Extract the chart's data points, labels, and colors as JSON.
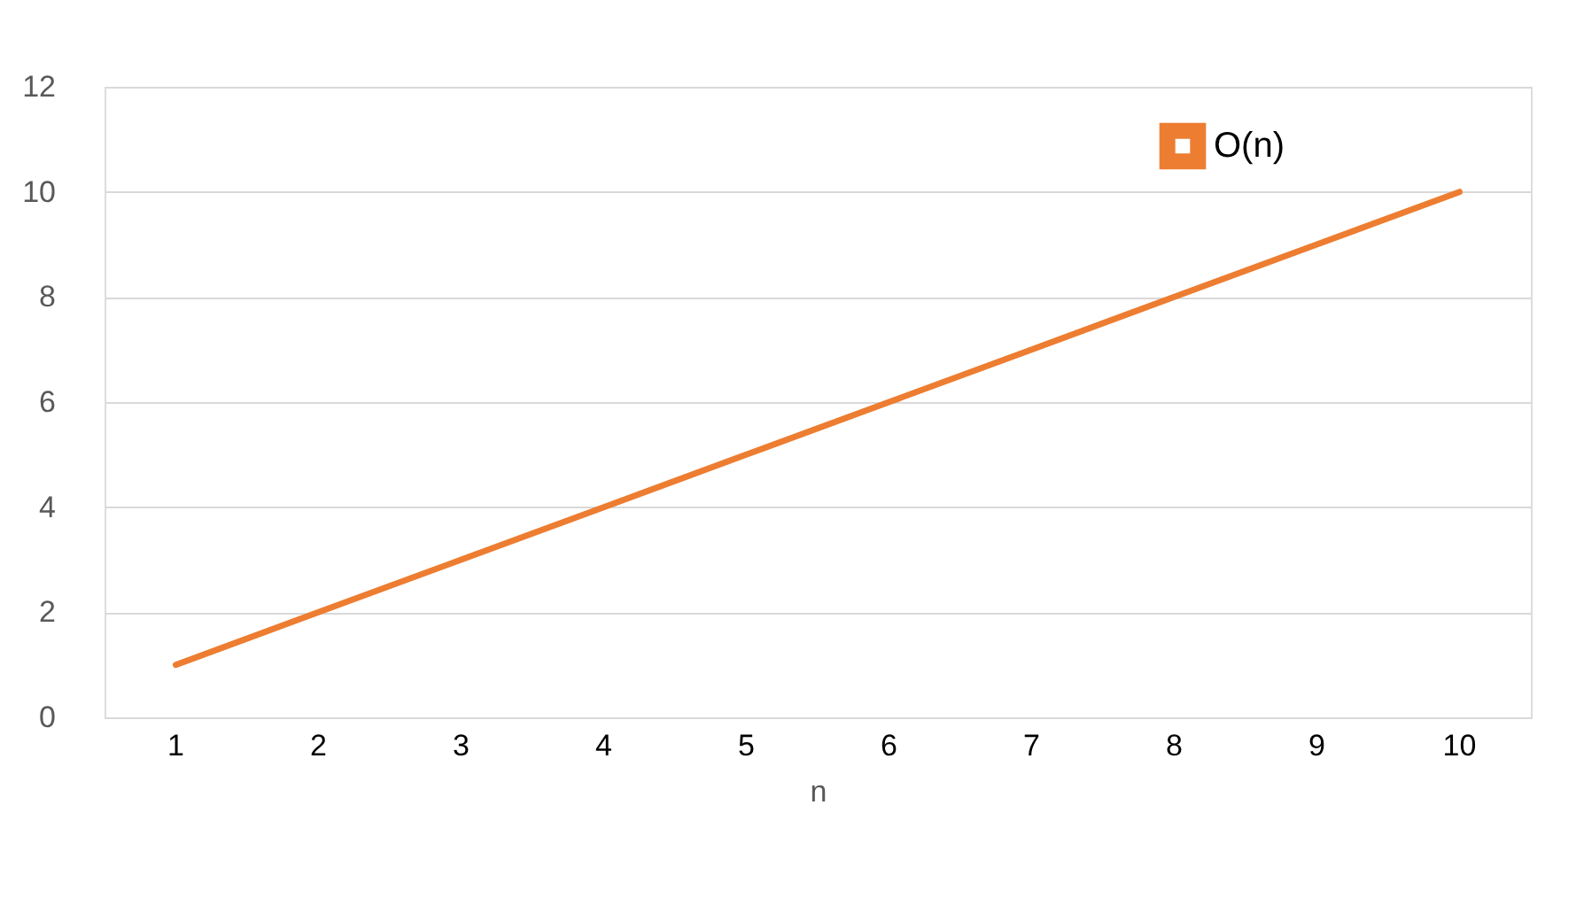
{
  "chart_data": {
    "type": "line",
    "xlabel": "n",
    "categories": [
      "1",
      "2",
      "3",
      "4",
      "5",
      "6",
      "7",
      "8",
      "9",
      "10"
    ],
    "series": [
      {
        "name": "O(n)",
        "color": "#ed7d31",
        "values": [
          1,
          2,
          3,
          4,
          5,
          6,
          7,
          8,
          9,
          10
        ]
      }
    ],
    "ylim": [
      0,
      12
    ],
    "yticks": [
      0,
      2,
      4,
      6,
      8,
      10,
      12
    ],
    "grid": "y",
    "legend": "top right",
    "marker": "none",
    "line_style": "solid"
  }
}
